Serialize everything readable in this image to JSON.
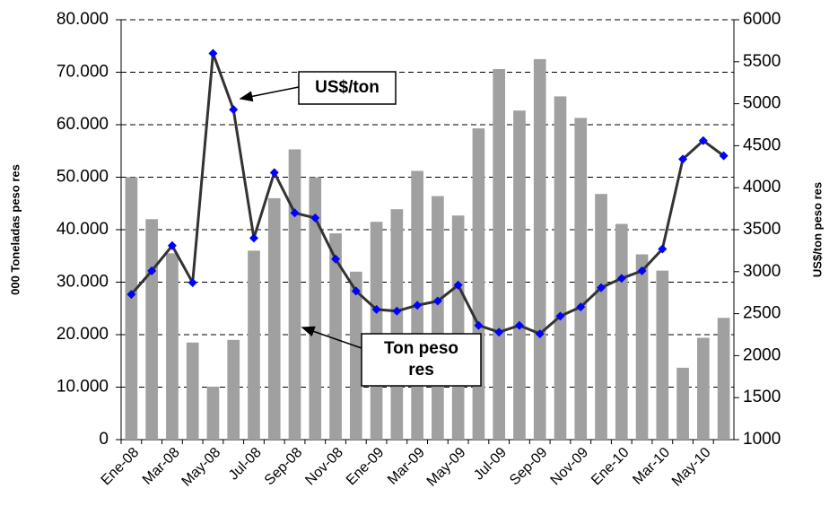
{
  "chart_data": {
    "type": "bar-line",
    "y_label": "000 Toneladas peso res",
    "y2_label": "US$/ton peso res",
    "categories": [
      "Ene-08",
      null,
      "Mar-08",
      null,
      "May-08",
      null,
      "Jul-08",
      null,
      "Sep-08",
      null,
      "Nov-08",
      null,
      "Ene-09",
      null,
      "Mar-09",
      null,
      "May-09",
      null,
      "Jul-09",
      null,
      "Sep-09",
      null,
      "Nov-09",
      null,
      "Ene-10",
      null,
      "Mar-10",
      null,
      "May-10",
      null
    ],
    "series": [
      {
        "name": "Ton peso res",
        "type": "bar",
        "color": "#a0a0a0",
        "axis": "y",
        "values": [
          50000,
          42000,
          35500,
          18500,
          10100,
          19000,
          36000,
          46000,
          55300,
          50000,
          39300,
          32000,
          41500,
          43900,
          51200,
          46400,
          42700,
          59300,
          70600,
          62700,
          72500,
          65400,
          61300,
          46800,
          41100,
          35300,
          32200,
          13700,
          19400,
          23200
        ]
      },
      {
        "name": "US$/ton",
        "type": "line",
        "color": "#333333",
        "marker_color": "#0000ff",
        "axis": "y2",
        "values": [
          2730,
          3010,
          3310,
          2870,
          5600,
          4930,
          3400,
          4180,
          3700,
          3640,
          3150,
          2770,
          2550,
          2530,
          2600,
          2650,
          2840,
          2360,
          2280,
          2360,
          2260,
          2470,
          2580,
          2810,
          2920,
          3010,
          3270,
          4340,
          4560,
          4380
        ]
      }
    ],
    "ylim": [
      0,
      80000
    ],
    "yticks": [
      0,
      {
        "value": 10000,
        "label": "10.000"
      },
      {
        "value": 20000,
        "label": "20.000"
      },
      {
        "value": 30000,
        "label": "30.000"
      },
      {
        "value": 40000,
        "label": "40.000"
      },
      {
        "value": 50000,
        "label": "50.000"
      },
      {
        "value": 60000,
        "label": "60.000"
      },
      {
        "value": 70000,
        "label": "70.000"
      },
      {
        "value": 80000,
        "label": "80.000"
      }
    ],
    "y2lim": [
      1000,
      6000
    ],
    "y2ticks": [
      1000,
      1500,
      2000,
      2500,
      3000,
      3500,
      4000,
      4500,
      5000,
      5500,
      6000
    ],
    "grid": true
  }
}
